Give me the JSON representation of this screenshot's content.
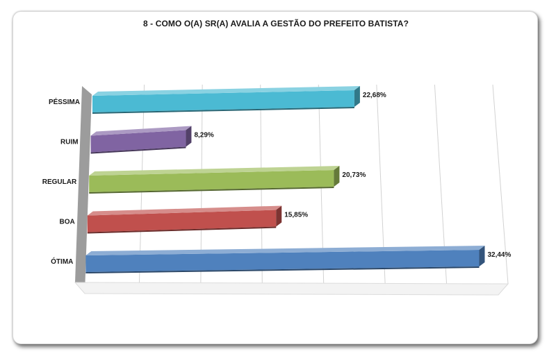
{
  "chart_data": {
    "type": "bar",
    "orientation": "horizontal",
    "style": "3d",
    "title": "8 - COMO O(A) SR(A) AVALIA A GESTÃO DO PREFEITO BATISTA?",
    "categories": [
      "PÉSSIMA",
      "RUIM",
      "REGULAR",
      "BOA",
      "ÓTIMA"
    ],
    "values": [
      22.68,
      8.29,
      20.73,
      15.85,
      32.44
    ],
    "value_labels": [
      "22,68%",
      "8,29%",
      "20,73%",
      "15,85%",
      "32,44%"
    ],
    "colors": [
      "#4bbad3",
      "#8064a2",
      "#9bbb59",
      "#c0504d",
      "#4f81bd"
    ],
    "xlim": [
      0,
      35
    ],
    "grid": true,
    "legend": "none"
  }
}
